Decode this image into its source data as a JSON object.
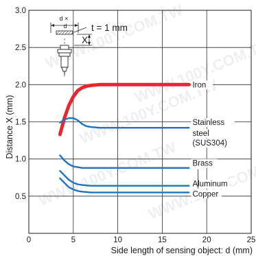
{
  "chart_data": {
    "type": "line",
    "title": "",
    "xlabel": "Side length of sensing object: d (mm)",
    "ylabel": "Distance X (mm)",
    "xlim": [
      0,
      25
    ],
    "ylim": [
      0,
      3.0
    ],
    "x_ticks": [
      "0",
      "5",
      "10",
      "15",
      "20",
      "25"
    ],
    "y_ticks": [
      "0.5",
      "1.0",
      "1.5",
      "2.0",
      "2.5",
      "3.0"
    ],
    "grid": true,
    "series": [
      {
        "name": "Iron",
        "color": "#e8262b",
        "x": [
          3.5,
          4,
          4.5,
          5,
          5.5,
          6,
          6.5,
          7,
          8,
          9,
          10,
          12,
          14,
          16,
          18
        ],
        "y": [
          1.33,
          1.55,
          1.72,
          1.84,
          1.92,
          1.96,
          1.98,
          1.99,
          2.0,
          2.0,
          2.0,
          2.0,
          2.0,
          2.0,
          2.0
        ]
      },
      {
        "name": "Stainless steel (SUS304)",
        "color": "#1a73c5",
        "x": [
          3.5,
          4,
          4.5,
          5,
          5.5,
          6,
          6.5,
          7,
          8,
          10,
          12,
          14,
          16,
          18
        ],
        "y": [
          1.49,
          1.53,
          1.55,
          1.55,
          1.52,
          1.47,
          1.44,
          1.43,
          1.42,
          1.42,
          1.42,
          1.42,
          1.42,
          1.42
        ]
      },
      {
        "name": "Brass",
        "color": "#1a73c5",
        "x": [
          3.5,
          4,
          4.5,
          5,
          5.5,
          6,
          7,
          8,
          10,
          12,
          14,
          16,
          18
        ],
        "y": [
          1.05,
          0.98,
          0.93,
          0.9,
          0.89,
          0.88,
          0.88,
          0.88,
          0.88,
          0.88,
          0.88,
          0.88,
          0.88
        ]
      },
      {
        "name": "Aluminum",
        "color": "#1a73c5",
        "x": [
          3.5,
          4,
          4.5,
          5,
          5.5,
          6,
          7,
          8,
          10,
          12,
          14,
          16,
          18
        ],
        "y": [
          0.84,
          0.78,
          0.72,
          0.68,
          0.66,
          0.65,
          0.64,
          0.64,
          0.64,
          0.64,
          0.64,
          0.64,
          0.64
        ]
      },
      {
        "name": "Copper",
        "color": "#1a73c5",
        "x": [
          3.5,
          4,
          4.5,
          5,
          5.5,
          6,
          7,
          8,
          10,
          12,
          14,
          16,
          18
        ],
        "y": [
          0.74,
          0.68,
          0.62,
          0.59,
          0.57,
          0.56,
          0.55,
          0.55,
          0.55,
          0.55,
          0.55,
          0.55,
          0.55
        ]
      }
    ],
    "series_labels": [
      "Iron",
      "Stainless",
      "steel",
      "(SUS304)",
      "Brass",
      "Aluminum",
      "Copper"
    ],
    "annotations": {
      "thickness": "t = 1 mm",
      "d_times_d": "d ×",
      "d": "d",
      "x": "X"
    },
    "watermark": "WWW.100Y.COM.TW"
  }
}
